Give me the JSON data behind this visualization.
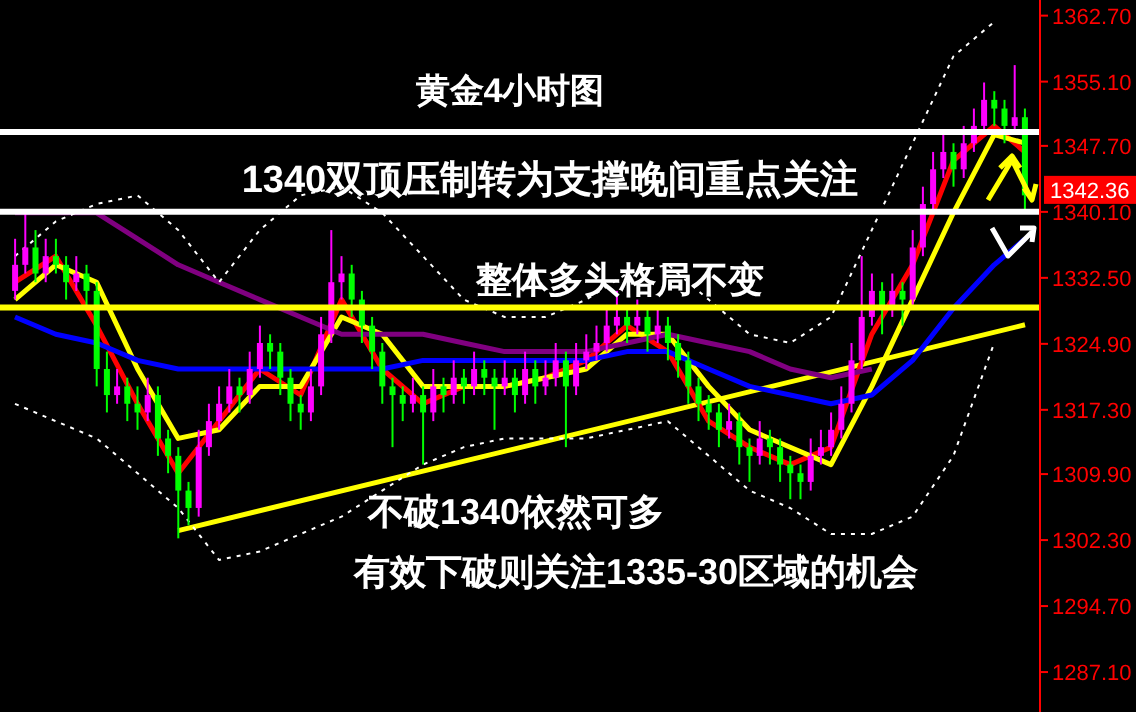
{
  "chart_data": {
    "type": "candlestick",
    "title": "黄金4小时图",
    "categories": [
      null,
      null,
      null,
      null,
      null,
      null,
      null,
      null,
      null,
      null,
      null,
      null,
      null,
      null,
      null,
      null,
      null,
      null,
      null,
      null,
      null,
      null,
      null,
      null,
      null,
      null,
      null,
      null,
      null,
      null,
      null,
      null,
      null,
      null,
      null,
      null,
      null,
      null,
      null,
      null,
      null,
      null,
      null,
      null,
      null,
      null,
      null,
      null,
      null,
      null,
      null,
      null,
      null,
      null,
      null,
      null,
      null,
      null,
      null,
      null,
      null,
      null,
      null,
      null,
      null,
      null,
      null,
      null,
      null,
      null,
      null,
      null,
      null,
      null,
      null,
      null,
      null,
      null,
      null,
      null,
      null,
      null,
      null,
      null,
      null,
      null,
      null,
      null,
      null,
      null,
      null,
      null,
      null,
      null,
      null,
      null,
      null,
      null,
      null,
      null
    ],
    "ylim": [
      1282.5,
      1364.5
    ],
    "yticks": [
      {
        "value": 1287.1,
        "label": "1287.10"
      },
      {
        "value": 1294.7,
        "label": "1294.70"
      },
      {
        "value": 1302.3,
        "label": "1302.30"
      },
      {
        "value": 1309.9,
        "label": "1309.90"
      },
      {
        "value": 1317.3,
        "label": "1317.30"
      },
      {
        "value": 1324.9,
        "label": "1324.90"
      },
      {
        "value": 1332.5,
        "label": "1332.50"
      },
      {
        "value": 1340.1,
        "label": "1340.10"
      },
      {
        "value": 1347.7,
        "label": "1347.70"
      },
      {
        "value": 1355.1,
        "label": "1355.10"
      },
      {
        "value": 1362.7,
        "label": "1362.70"
      }
    ],
    "colors": [
      "#ff00ff",
      "#ff00ff",
      "#00ff00",
      "#ff00ff",
      "#00ff00",
      "#00ff00",
      "#ff00ff",
      "#00ff00",
      "#00ff00",
      "#00ff00",
      "#ff00ff",
      "#00ff00",
      "#00ff00",
      "#ff00ff",
      "#00ff00",
      "#00ff00",
      "#00ff00",
      "#00ff00",
      "#ff00ff",
      "#ff00ff",
      "#ff00ff",
      "#ff00ff",
      "#00ff00",
      "#ff00ff",
      "#ff00ff",
      "#00ff00",
      "#00ff00",
      "#00ff00",
      "#00ff00",
      "#ff00ff",
      "#ff00ff",
      "#ff00ff",
      "#ff00ff",
      "#00ff00",
      "#00ff00",
      "#00ff00",
      "#00ff00",
      "#00ff00",
      "#00ff00",
      "#ff00ff",
      "#00ff00",
      "#ff00ff",
      "#00ff00",
      "#ff00ff",
      "#00ff00",
      "#ff00ff",
      "#00ff00",
      "#00ff00",
      "#ff00ff",
      "#00ff00",
      "#ff00ff",
      "#00ff00",
      "#ff00ff",
      "#ff00ff",
      "#00ff00",
      "#ff00ff",
      "#ff00ff",
      "#ff00ff",
      "#ff00ff",
      "#ff00ff",
      "#00ff00",
      "#ff00ff",
      "#00ff00",
      "#ff00ff",
      "#00ff00",
      "#00ff00",
      "#00ff00",
      "#00ff00",
      "#00ff00",
      "#00ff00",
      "#ff00ff",
      "#00ff00",
      "#00ff00",
      "#ff00ff",
      "#00ff00",
      "#00ff00",
      "#00ff00",
      "#00ff00",
      "#ff00ff",
      "#ff00ff",
      "#ff00ff",
      "#ff00ff",
      "#ff00ff",
      "#ff00ff",
      "#ff00ff",
      "#00ff00",
      "#ff00ff",
      "#00ff00",
      "#ff00ff",
      "#ff00ff",
      "#ff00ff",
      "#ff00ff",
      "#00ff00",
      "#ff00ff",
      "#ff00ff",
      "#ff00ff",
      "#00ff00",
      "#00ff00",
      "#ff00ff",
      "#00ff00"
    ],
    "ohlc": [
      [
        1331,
        1337,
        1330,
        1334
      ],
      [
        1334,
        1340,
        1333,
        1336
      ],
      [
        1336,
        1338,
        1332,
        1333
      ],
      [
        1333,
        1337,
        1332,
        1335
      ],
      [
        1335,
        1337,
        1333,
        1334
      ],
      [
        1334,
        1335,
        1330,
        1332
      ],
      [
        1332,
        1335,
        1331,
        1333
      ],
      [
        1333,
        1334,
        1329,
        1331
      ],
      [
        1331,
        1332,
        1320,
        1322
      ],
      [
        1322,
        1324,
        1317,
        1319
      ],
      [
        1319,
        1322,
        1318,
        1320
      ],
      [
        1320,
        1321,
        1316,
        1318
      ],
      [
        1318,
        1320,
        1315,
        1317
      ],
      [
        1317,
        1321,
        1316,
        1319
      ],
      [
        1319,
        1320,
        1312,
        1314
      ],
      [
        1314,
        1315,
        1310,
        1312
      ],
      [
        1312,
        1313,
        1302.5,
        1308
      ],
      [
        1308,
        1309,
        1304,
        1306
      ],
      [
        1306,
        1315,
        1305,
        1313
      ],
      [
        1313,
        1318,
        1312,
        1316
      ],
      [
        1316,
        1320,
        1315,
        1318
      ],
      [
        1318,
        1322,
        1317,
        1320
      ],
      [
        1320,
        1321,
        1317,
        1319
      ],
      [
        1319,
        1324,
        1318,
        1322
      ],
      [
        1322,
        1327,
        1321,
        1325
      ],
      [
        1325,
        1326,
        1322,
        1324
      ],
      [
        1324,
        1325,
        1319,
        1321
      ],
      [
        1321,
        1322,
        1316,
        1318
      ],
      [
        1318,
        1319,
        1315,
        1317
      ],
      [
        1317,
        1322,
        1316,
        1320
      ],
      [
        1320,
        1328,
        1319,
        1326
      ],
      [
        1326,
        1338,
        1325,
        1332
      ],
      [
        1332,
        1335,
        1330,
        1333
      ],
      [
        1333,
        1334,
        1328,
        1330
      ],
      [
        1330,
        1331,
        1325,
        1327
      ],
      [
        1327,
        1328,
        1322,
        1324
      ],
      [
        1324,
        1325,
        1318,
        1320
      ],
      [
        1320,
        1321,
        1313,
        1319
      ],
      [
        1319,
        1320,
        1316,
        1318
      ],
      [
        1318,
        1321,
        1317,
        1319
      ],
      [
        1319,
        1320,
        1311,
        1317
      ],
      [
        1317,
        1322,
        1316,
        1320
      ],
      [
        1320,
        1321,
        1317,
        1319
      ],
      [
        1319,
        1323,
        1318,
        1321
      ],
      [
        1321,
        1322,
        1318,
        1320
      ],
      [
        1320,
        1324,
        1319,
        1322
      ],
      [
        1322,
        1323,
        1319,
        1321
      ],
      [
        1321,
        1322,
        1315,
        1320
      ],
      [
        1320,
        1323,
        1319,
        1321
      ],
      [
        1321,
        1322,
        1317,
        1319
      ],
      [
        1319,
        1324,
        1318,
        1322
      ],
      [
        1322,
        1323,
        1318,
        1320
      ],
      [
        1320,
        1323,
        1319,
        1321
      ],
      [
        1321,
        1325,
        1320,
        1323
      ],
      [
        1323,
        1324,
        1313,
        1320
      ],
      [
        1320,
        1325,
        1319,
        1323
      ],
      [
        1323,
        1326,
        1322,
        1324
      ],
      [
        1324,
        1327,
        1323,
        1325
      ],
      [
        1325,
        1329,
        1324,
        1327
      ],
      [
        1327,
        1331,
        1326,
        1328
      ],
      [
        1328,
        1329,
        1325,
        1327
      ],
      [
        1327,
        1330,
        1326,
        1328
      ],
      [
        1328,
        1329,
        1324,
        1326
      ],
      [
        1326,
        1329,
        1325,
        1327
      ],
      [
        1327,
        1328,
        1323,
        1325
      ],
      [
        1325,
        1326,
        1321,
        1323
      ],
      [
        1323,
        1324,
        1318,
        1320
      ],
      [
        1320,
        1321,
        1316,
        1318
      ],
      [
        1318,
        1319,
        1315,
        1317
      ],
      [
        1317,
        1318,
        1313,
        1315
      ],
      [
        1315,
        1318,
        1314,
        1316
      ],
      [
        1316,
        1317,
        1311,
        1313
      ],
      [
        1313,
        1314,
        1309,
        1312
      ],
      [
        1312,
        1316,
        1311,
        1314
      ],
      [
        1314,
        1315,
        1311,
        1313
      ],
      [
        1313,
        1314,
        1309,
        1311
      ],
      [
        1311,
        1312,
        1307,
        1310
      ],
      [
        1310,
        1311,
        1307,
        1309
      ],
      [
        1309,
        1314,
        1308,
        1312
      ],
      [
        1312,
        1315,
        1311,
        1313
      ],
      [
        1313,
        1317,
        1312,
        1315
      ],
      [
        1315,
        1320,
        1314,
        1318
      ],
      [
        1318,
        1325,
        1317,
        1323
      ],
      [
        1323,
        1335,
        1322,
        1328
      ],
      [
        1328,
        1333,
        1327,
        1331
      ],
      [
        1331,
        1332,
        1326,
        1329
      ],
      [
        1329,
        1333,
        1328,
        1331
      ],
      [
        1331,
        1332,
        1327,
        1330
      ],
      [
        1330,
        1338,
        1329,
        1336
      ],
      [
        1336,
        1343,
        1335,
        1341
      ],
      [
        1341,
        1347,
        1340,
        1345
      ],
      [
        1345,
        1349,
        1344,
        1347
      ],
      [
        1347,
        1348,
        1343,
        1345
      ],
      [
        1345,
        1350,
        1344,
        1348
      ],
      [
        1348,
        1352,
        1347,
        1350
      ],
      [
        1350,
        1355,
        1349,
        1353
      ],
      [
        1353,
        1354,
        1350,
        1352
      ],
      [
        1352,
        1353,
        1348,
        1350
      ],
      [
        1350,
        1357,
        1349,
        1351
      ],
      [
        1351,
        1352,
        1340,
        1342
      ]
    ],
    "series": [
      {
        "type": "line",
        "color": "#ffff00",
        "values": [
          null,
          null,
          null,
          null,
          null,
          null,
          null,
          null,
          null,
          null,
          null,
          null,
          null,
          null,
          null,
          null,
          1303.4,
          null,
          null,
          null,
          null,
          null,
          null,
          null,
          null,
          null,
          null,
          null,
          null,
          null,
          null,
          null,
          null,
          null,
          null,
          null,
          null,
          null,
          null,
          null,
          null,
          null,
          null,
          null,
          null,
          null,
          null,
          null,
          null,
          null,
          null,
          null,
          null,
          null,
          null,
          null,
          null,
          null,
          null,
          null,
          null,
          null,
          null,
          null,
          null,
          null,
          null,
          null,
          null,
          null,
          null,
          null,
          null,
          null,
          null,
          null,
          null,
          null,
          null,
          null,
          null,
          null,
          null,
          null,
          null,
          null,
          null,
          null,
          null,
          null,
          null,
          null,
          null,
          null,
          null,
          null,
          null,
          null,
          null,
          1327.1
        ]
      },
      {
        "type": "line",
        "color": "#ff0000",
        "values": [
          1332,
          null,
          null,
          null,
          1335,
          null,
          null,
          null,
          1327,
          null,
          null,
          null,
          1318,
          null,
          null,
          null,
          1310,
          null,
          null,
          null,
          1316,
          null,
          null,
          null,
          1322,
          null,
          null,
          null,
          1319,
          null,
          null,
          null,
          1330,
          null,
          null,
          null,
          1322,
          null,
          null,
          null,
          1318,
          null,
          null,
          null,
          1320,
          null,
          null,
          null,
          1320,
          null,
          null,
          null,
          1321,
          null,
          null,
          null,
          1323,
          null,
          null,
          null,
          1327,
          null,
          null,
          null,
          1324,
          null,
          null,
          null,
          1316,
          null,
          null,
          null,
          1313,
          null,
          null,
          null,
          1311,
          null,
          null,
          null,
          1313,
          null,
          null,
          null,
          1326,
          null,
          null,
          null,
          1334,
          null,
          null,
          null,
          1346,
          null,
          null,
          null,
          1350,
          null,
          null,
          1347
        ]
      },
      {
        "type": "line",
        "color": "#ffff00",
        "values": [
          1330,
          null,
          null,
          null,
          1334,
          null,
          null,
          null,
          1332,
          null,
          null,
          null,
          1322,
          null,
          null,
          null,
          1314,
          null,
          null,
          null,
          1315,
          null,
          null,
          null,
          1320,
          null,
          null,
          null,
          1320,
          null,
          null,
          null,
          1328,
          null,
          null,
          null,
          1326,
          null,
          null,
          null,
          1320,
          null,
          null,
          null,
          1320,
          null,
          null,
          null,
          1320,
          null,
          null,
          null,
          1321,
          null,
          null,
          null,
          1322,
          null,
          null,
          null,
          1326,
          null,
          null,
          null,
          1326,
          null,
          null,
          null,
          1320,
          null,
          null,
          null,
          1315,
          null,
          null,
          null,
          1313,
          null,
          null,
          null,
          1311,
          null,
          null,
          null,
          1320,
          null,
          null,
          null,
          1330,
          null,
          null,
          null,
          1340,
          null,
          null,
          null,
          1349,
          null,
          null,
          1348
        ]
      },
      {
        "type": "line",
        "color": "#0000ff",
        "values": [
          1328,
          null,
          null,
          null,
          1326,
          null,
          null,
          null,
          1325,
          null,
          null,
          null,
          1323,
          null,
          null,
          null,
          1322,
          null,
          null,
          null,
          1322,
          null,
          null,
          null,
          1322,
          null,
          null,
          null,
          1322,
          null,
          null,
          null,
          1322,
          null,
          null,
          null,
          1322,
          null,
          null,
          null,
          1323,
          null,
          null,
          null,
          1323,
          null,
          null,
          null,
          1323,
          null,
          null,
          null,
          1323,
          null,
          null,
          null,
          1323,
          null,
          null,
          null,
          1324,
          null,
          null,
          null,
          1324,
          null,
          null,
          null,
          1322,
          null,
          null,
          null,
          1320,
          null,
          null,
          null,
          1319,
          null,
          null,
          null,
          1318,
          null,
          null,
          null,
          1319,
          null,
          null,
          null,
          1323,
          null,
          null,
          null,
          1329,
          null,
          null,
          null,
          1334,
          null,
          null,
          1337
        ]
      },
      {
        "type": "line",
        "color": "#800080",
        "values": [
          1340,
          null,
          null,
          null,
          1340,
          null,
          null,
          null,
          1340,
          null,
          null,
          null,
          1337,
          null,
          null,
          null,
          1334,
          null,
          null,
          null,
          1332,
          null,
          null,
          null,
          1330,
          null,
          null,
          null,
          1328,
          null,
          null,
          null,
          1326,
          null,
          null,
          null,
          1326,
          null,
          null,
          null,
          1326,
          null,
          null,
          null,
          1325,
          null,
          null,
          null,
          1324,
          null,
          null,
          null,
          1324,
          null,
          null,
          null,
          1324,
          null,
          null,
          null,
          1325,
          null,
          null,
          null,
          1326,
          null,
          null,
          null,
          1325,
          null,
          null,
          null,
          1324,
          null,
          null,
          null,
          1322,
          null,
          null,
          null,
          1321,
          null,
          null,
          null,
          1322,
          null,
          null,
          null,
          null,
          null,
          null,
          null,
          null,
          null,
          null,
          null,
          null,
          null,
          null,
          null
        ]
      },
      {
        "type": "line",
        "color": "#ffffff",
        "line_style": "dotted",
        "values": [
          1335,
          null,
          null,
          null,
          1339,
          null,
          null,
          null,
          1341,
          null,
          null,
          null,
          1342,
          null,
          null,
          null,
          1338,
          null,
          null,
          null,
          1332,
          null,
          null,
          null,
          1338,
          null,
          null,
          null,
          1342,
          null,
          null,
          null,
          1343,
          null,
          null,
          null,
          1340,
          null,
          null,
          null,
          1335,
          null,
          null,
          null,
          1330,
          null,
          null,
          null,
          1328,
          null,
          null,
          null,
          1328,
          null,
          null,
          null,
          1330,
          null,
          null,
          null,
          1333,
          null,
          null,
          null,
          1334,
          null,
          null,
          null,
          1330,
          null,
          null,
          null,
          1326,
          null,
          null,
          null,
          1325,
          null,
          null,
          null,
          1328,
          null,
          null,
          null,
          1338,
          null,
          null,
          null,
          1348,
          null,
          null,
          null,
          1358,
          null,
          null,
          null,
          1362,
          null,
          null,
          null
        ]
      },
      {
        "type": "line",
        "color": "#ffffff",
        "line_style": "dotted",
        "values": [
          1318,
          null,
          null,
          null,
          1316,
          null,
          null,
          null,
          1314,
          null,
          null,
          null,
          1310,
          null,
          null,
          null,
          1306,
          null,
          null,
          null,
          1300,
          null,
          null,
          null,
          1301,
          null,
          null,
          null,
          1303,
          null,
          null,
          null,
          1305,
          null,
          null,
          null,
          1308,
          null,
          null,
          null,
          1311,
          null,
          null,
          null,
          1313,
          null,
          null,
          null,
          1314,
          null,
          null,
          null,
          1314,
          null,
          null,
          null,
          1314,
          null,
          null,
          null,
          1315,
          null,
          null,
          null,
          1316,
          null,
          null,
          null,
          1312,
          null,
          null,
          null,
          1308,
          null,
          null,
          null,
          1306,
          null,
          null,
          null,
          1303,
          null,
          null,
          null,
          1303,
          null,
          null,
          null,
          1305,
          null,
          null,
          null,
          1312,
          null,
          null,
          null,
          1325,
          null,
          null,
          null
        ]
      }
    ],
    "ref_lines": [
      {
        "axis": "y",
        "value": 1340.1,
        "color": "#ffffff"
      },
      {
        "axis": "y",
        "value": 1329.1,
        "color": "#ffff00"
      },
      {
        "axis": "y",
        "value": 1349.3,
        "color": "#ffffff"
      }
    ],
    "annotations": [
      "1340双顶压制转为支撑晚间重点关注",
      "整体多头格局不变",
      "不破1340依然可多",
      "有效下破则关注1335-30区域的机会",
      "1342.36"
    ]
  }
}
